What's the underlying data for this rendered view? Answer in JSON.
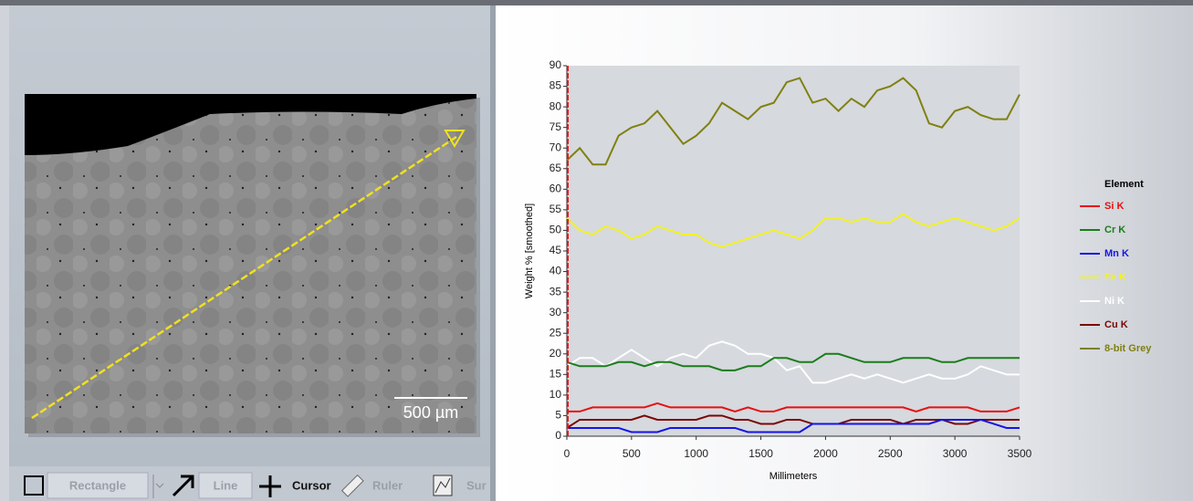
{
  "image": {
    "scale_bar": "500 µm"
  },
  "toolbar": {
    "tools": [
      "Rectangle",
      "Line",
      "Cursor",
      "Ruler",
      "Sur"
    ]
  },
  "chart_data": {
    "type": "line",
    "x_label": "Millimeters",
    "y_label": "Weight % [smoothed]",
    "legend_title": "Element",
    "x": [
      0,
      100,
      200,
      300,
      400,
      500,
      600,
      700,
      800,
      900,
      1000,
      1100,
      1200,
      1300,
      1400,
      1500,
      1600,
      1700,
      1800,
      1900,
      2000,
      2100,
      2200,
      2300,
      2400,
      2500,
      2600,
      2700,
      2800,
      2900,
      3000,
      3100,
      3200,
      3300,
      3400,
      3500
    ],
    "xlim": [
      0,
      3500
    ],
    "xticks": [
      0,
      500,
      1000,
      1500,
      2000,
      2500,
      3000,
      3500
    ],
    "ylim": [
      0,
      90
    ],
    "yticks": [
      0,
      5,
      10,
      15,
      20,
      25,
      30,
      35,
      40,
      45,
      50,
      55,
      60,
      65,
      70,
      75,
      80,
      85,
      90
    ],
    "series": [
      {
        "name": "Si K",
        "color": "#e81010",
        "values": [
          6,
          6,
          7,
          7,
          7,
          7,
          7,
          8,
          7,
          7,
          7,
          7,
          7,
          6,
          7,
          6,
          6,
          7,
          7,
          7,
          7,
          7,
          7,
          7,
          7,
          7,
          7,
          6,
          7,
          7,
          7,
          7,
          6,
          6,
          6,
          7
        ]
      },
      {
        "name": "Cr K",
        "color": "#1a7d1a",
        "values": [
          18,
          17,
          17,
          17,
          18,
          18,
          17,
          18,
          18,
          17,
          17,
          17,
          16,
          16,
          17,
          17,
          19,
          19,
          18,
          18,
          20,
          20,
          19,
          18,
          18,
          18,
          19,
          19,
          19,
          18,
          18,
          19,
          19,
          19,
          19,
          19
        ]
      },
      {
        "name": "Mn K",
        "color": "#1414e6",
        "values": [
          2,
          2,
          2,
          2,
          2,
          1,
          1,
          1,
          2,
          2,
          2,
          2,
          2,
          2,
          1,
          1,
          1,
          1,
          1,
          3,
          3,
          3,
          3,
          3,
          3,
          3,
          3,
          3,
          3,
          4,
          4,
          4,
          4,
          3,
          2,
          2
        ]
      },
      {
        "name": "Fe K",
        "color": "#f2f224",
        "values": [
          53,
          50,
          49,
          51,
          50,
          48,
          49,
          51,
          50,
          49,
          49,
          47,
          46,
          47,
          48,
          49,
          50,
          49,
          48,
          50,
          53,
          53,
          52,
          53,
          52,
          52,
          54,
          52,
          51,
          52,
          53,
          52,
          51,
          50,
          51,
          53
        ]
      },
      {
        "name": "Ni K",
        "color": "#ffffff",
        "values": [
          17,
          19,
          19,
          17,
          19,
          21,
          19,
          17,
          19,
          20,
          19,
          22,
          23,
          22,
          20,
          20,
          19,
          16,
          17,
          13,
          13,
          14,
          15,
          14,
          15,
          14,
          13,
          14,
          15,
          14,
          14,
          15,
          17,
          16,
          15,
          15
        ]
      },
      {
        "name": "Cu K",
        "color": "#7a0606",
        "values": [
          2,
          4,
          4,
          4,
          4,
          4,
          5,
          4,
          4,
          4,
          4,
          5,
          5,
          4,
          4,
          3,
          3,
          4,
          4,
          3,
          3,
          3,
          4,
          4,
          4,
          4,
          3,
          4,
          4,
          4,
          3,
          3,
          4,
          4,
          4,
          4
        ]
      },
      {
        "name": "8-bit Grey",
        "color": "#808010",
        "values": [
          67,
          70,
          66,
          66,
          73,
          75,
          76,
          79,
          75,
          71,
          73,
          76,
          81,
          79,
          77,
          80,
          81,
          86,
          87,
          81,
          82,
          79,
          82,
          80,
          84,
          85,
          87,
          84,
          76,
          75,
          79,
          80,
          78,
          77,
          77,
          83
        ]
      }
    ]
  }
}
